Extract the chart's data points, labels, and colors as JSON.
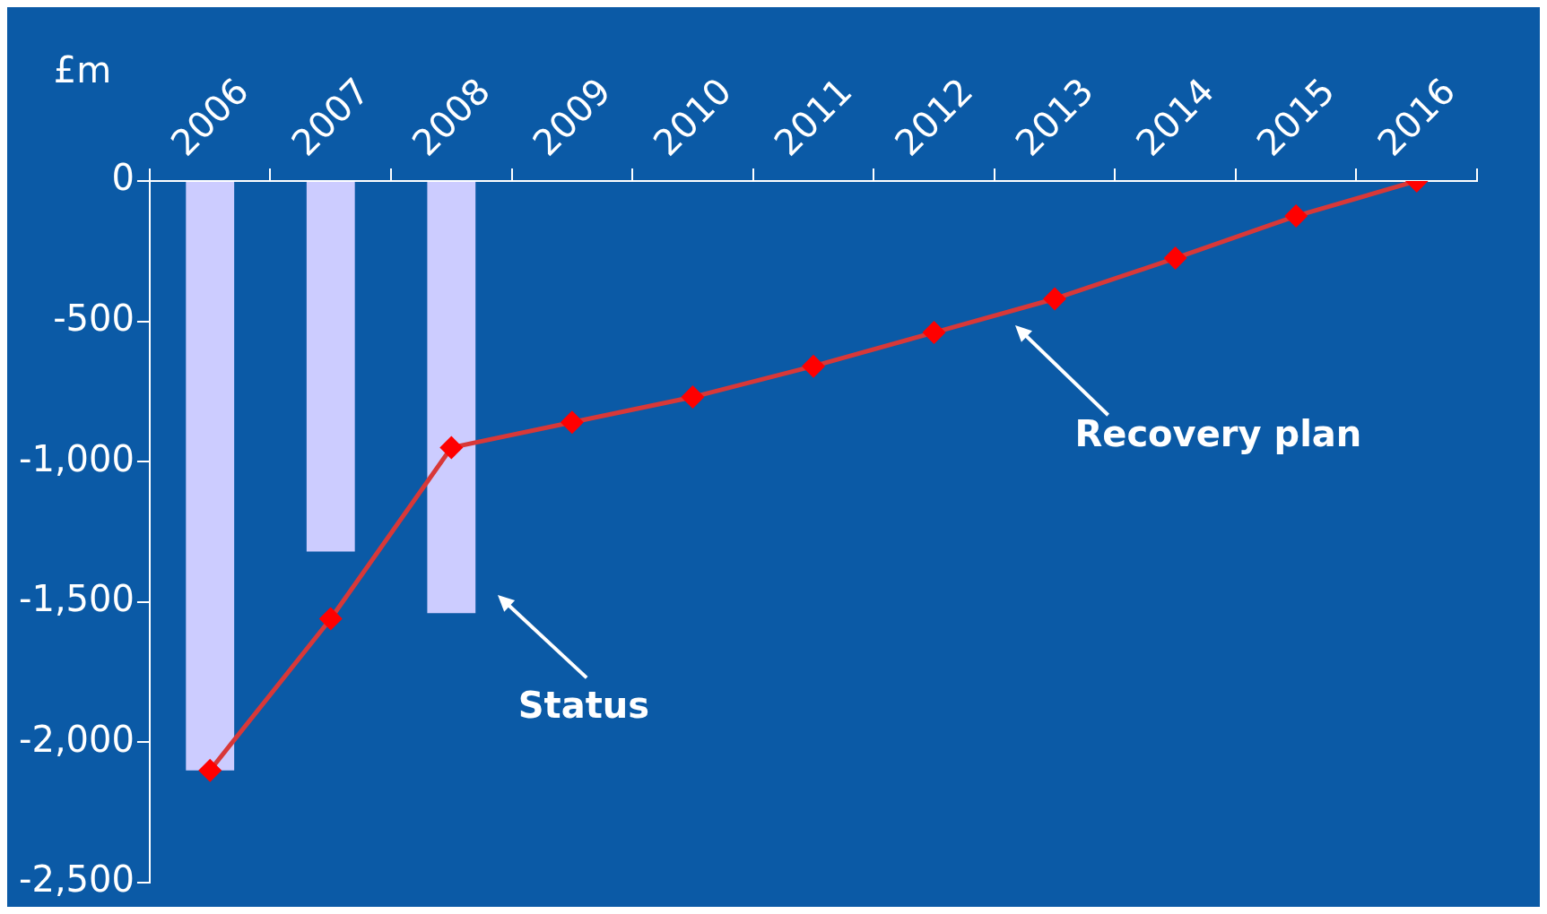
{
  "chart_data": {
    "type": "bar",
    "ylabel": "£m",
    "categories": [
      "2006",
      "2007",
      "2008",
      "2009",
      "2010",
      "2011",
      "2012",
      "2013",
      "2014",
      "2015",
      "2016"
    ],
    "series": [
      {
        "color": "#ccccff",
        "values": [
          -2100,
          -1320,
          -1540,
          null,
          null,
          null,
          null,
          null,
          null,
          null,
          null
        ]
      },
      {
        "type": "line",
        "color": "#d83838",
        "values": [
          -2100,
          -1560,
          -950,
          -860,
          -770,
          -660,
          -540,
          -420,
          -275,
          -125,
          0
        ]
      }
    ],
    "marker": "diamond",
    "line_style": "solid",
    "ylim": [
      -2500,
      0
    ],
    "yticks": [
      {
        "value": 0,
        "label": "0"
      },
      {
        "value": -500,
        "label": "-500"
      },
      {
        "value": -1000,
        "label": "-1,000"
      },
      {
        "value": -1500,
        "label": "-1,500"
      },
      {
        "value": -2000,
        "label": "-2,000"
      },
      {
        "value": -2500,
        "label": "-2,500"
      }
    ],
    "annotations": [
      "Status",
      "Recovery plan"
    ],
    "grid": false,
    "legend": false
  }
}
